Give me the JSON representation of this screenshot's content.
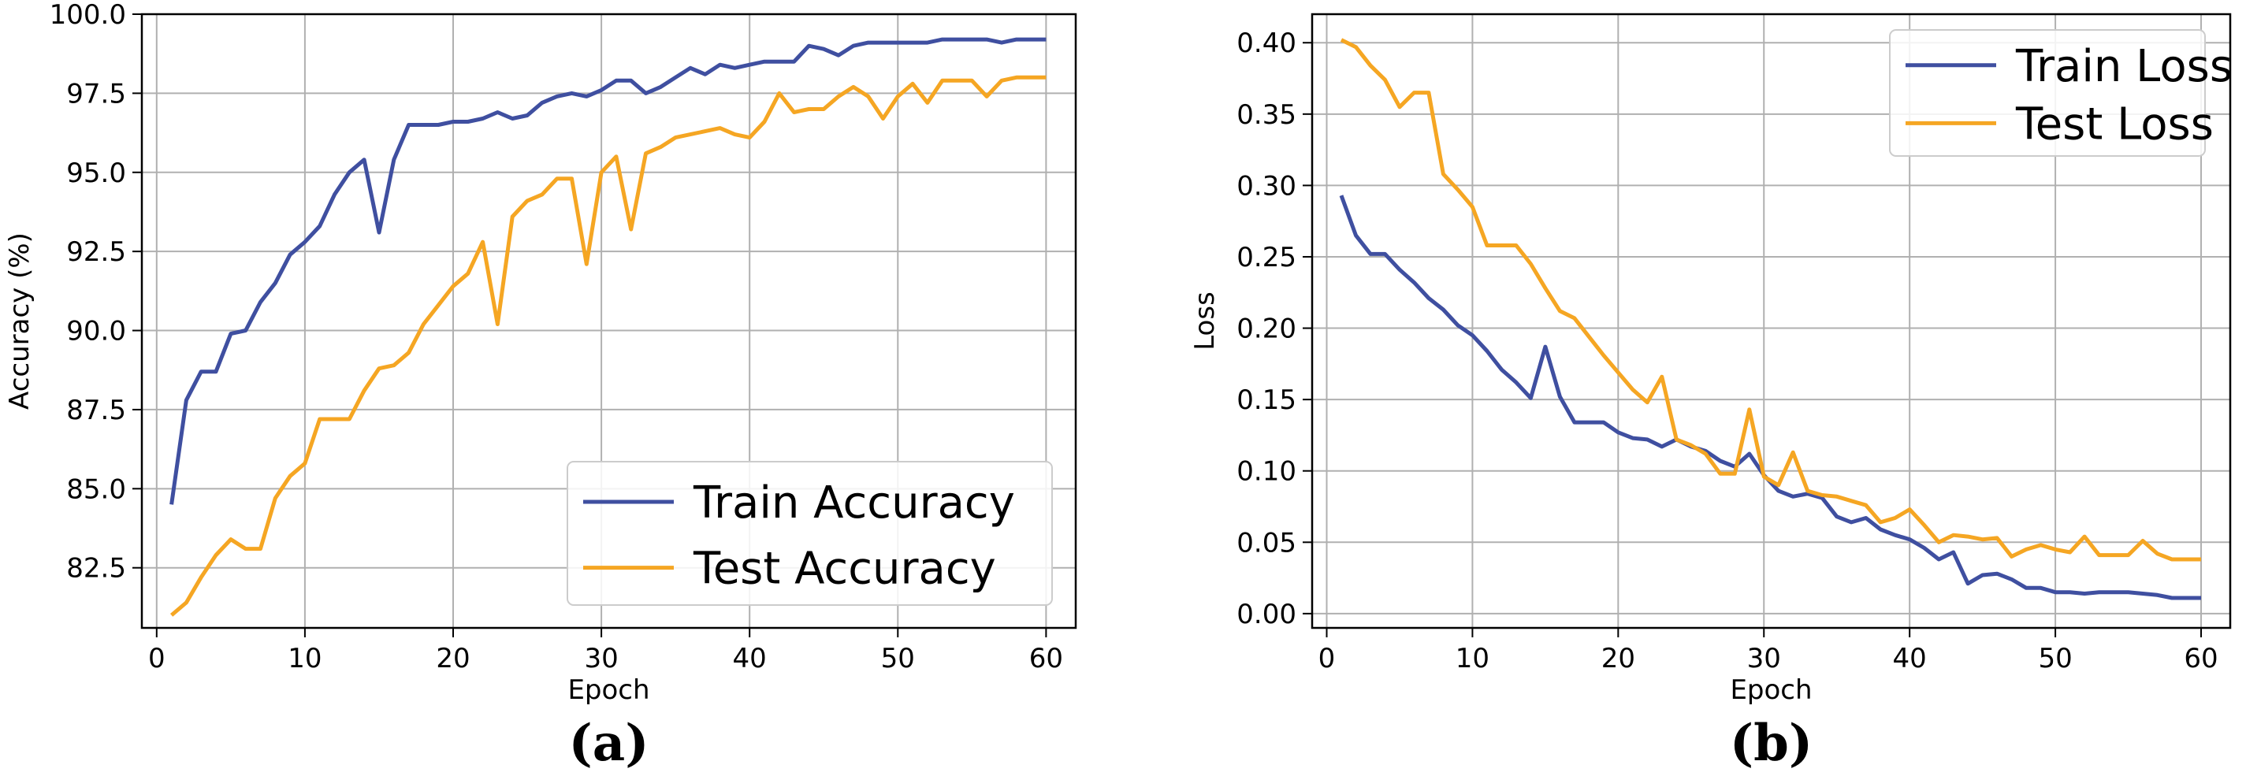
{
  "chart_data": [
    {
      "type": "line",
      "panel_label": "(a)",
      "xlabel": "Epoch",
      "ylabel": "Accuracy (%)",
      "xlim": [
        -1,
        62
      ],
      "ylim": [
        80.6,
        100.0
      ],
      "x_ticks": [
        0,
        10,
        20,
        30,
        40,
        50,
        60
      ],
      "y_ticks": [
        82.5,
        85.0,
        87.5,
        90.0,
        92.5,
        95.0,
        97.5,
        100.0
      ],
      "y_tick_labels": [
        "82.5",
        "85.0",
        "87.5",
        "90.0",
        "92.5",
        "95.0",
        "97.5",
        "100.0"
      ],
      "grid": true,
      "legend_position": "bottom-right",
      "x": [
        1,
        2,
        3,
        4,
        5,
        6,
        7,
        8,
        9,
        10,
        11,
        12,
        13,
        14,
        15,
        16,
        17,
        18,
        19,
        20,
        21,
        22,
        23,
        24,
        25,
        26,
        27,
        28,
        29,
        30,
        31,
        32,
        33,
        34,
        35,
        36,
        37,
        38,
        39,
        40,
        41,
        42,
        43,
        44,
        45,
        46,
        47,
        48,
        49,
        50,
        51,
        52,
        53,
        54,
        55,
        56,
        57,
        58,
        59,
        60
      ],
      "series": [
        {
          "name": "Train Accuracy",
          "color": "#3f4fa0",
          "values": [
            84.5,
            87.8,
            88.7,
            88.7,
            89.9,
            90.0,
            90.9,
            91.5,
            92.4,
            92.8,
            93.3,
            94.3,
            95.0,
            95.4,
            93.1,
            95.4,
            96.5,
            96.5,
            96.5,
            96.6,
            96.6,
            96.7,
            96.9,
            96.7,
            96.8,
            97.2,
            97.4,
            97.5,
            97.4,
            97.6,
            97.9,
            97.9,
            97.5,
            97.7,
            98.0,
            98.3,
            98.1,
            98.4,
            98.3,
            98.4,
            98.5,
            98.5,
            98.5,
            99.0,
            98.9,
            98.7,
            99.0,
            99.1,
            99.1,
            99.1,
            99.1,
            99.1,
            99.2,
            99.2,
            99.2,
            99.2,
            99.1,
            99.2,
            99.2,
            99.2
          ]
        },
        {
          "name": "Test Accuracy",
          "color": "#f5a623",
          "values": [
            81.0,
            81.4,
            82.2,
            82.9,
            83.4,
            83.1,
            83.1,
            84.7,
            85.4,
            85.8,
            87.2,
            87.2,
            87.2,
            88.1,
            88.8,
            88.9,
            89.3,
            90.2,
            90.8,
            91.4,
            91.8,
            92.8,
            90.2,
            93.6,
            94.1,
            94.3,
            94.8,
            94.8,
            92.1,
            95.0,
            95.5,
            93.2,
            95.6,
            95.8,
            96.1,
            96.2,
            96.3,
            96.4,
            96.2,
            96.1,
            96.6,
            97.5,
            96.9,
            97.0,
            97.0,
            97.4,
            97.7,
            97.4,
            96.7,
            97.4,
            97.8,
            97.2,
            97.9,
            97.9,
            97.9,
            97.4,
            97.9,
            98.0,
            98.0,
            98.0
          ]
        }
      ]
    },
    {
      "type": "line",
      "panel_label": "(b)",
      "xlabel": "Epoch",
      "ylabel": "Loss",
      "xlim": [
        -1,
        62
      ],
      "ylim": [
        -0.01,
        0.42
      ],
      "x_ticks": [
        0,
        10,
        20,
        30,
        40,
        50,
        60
      ],
      "y_ticks": [
        0.0,
        0.05,
        0.1,
        0.15,
        0.2,
        0.25,
        0.3,
        0.35,
        0.4
      ],
      "y_tick_labels": [
        "0.00",
        "0.05",
        "0.10",
        "0.15",
        "0.20",
        "0.25",
        "0.30",
        "0.35",
        "0.40"
      ],
      "grid": true,
      "legend_position": "top-right",
      "x": [
        1,
        2,
        3,
        4,
        5,
        6,
        7,
        8,
        9,
        10,
        11,
        12,
        13,
        14,
        15,
        16,
        17,
        18,
        19,
        20,
        21,
        22,
        23,
        24,
        25,
        26,
        27,
        28,
        29,
        30,
        31,
        32,
        33,
        34,
        35,
        36,
        37,
        38,
        39,
        40,
        41,
        42,
        43,
        44,
        45,
        46,
        47,
        48,
        49,
        50,
        51,
        52,
        53,
        54,
        55,
        56,
        57,
        58,
        59,
        60
      ],
      "series": [
        {
          "name": "Train Loss",
          "color": "#3f4fa0",
          "values": [
            0.293,
            0.265,
            0.252,
            0.252,
            0.241,
            0.232,
            0.221,
            0.213,
            0.202,
            0.195,
            0.184,
            0.171,
            0.162,
            0.151,
            0.187,
            0.152,
            0.134,
            0.134,
            0.134,
            0.127,
            0.123,
            0.122,
            0.117,
            0.122,
            0.117,
            0.114,
            0.107,
            0.103,
            0.112,
            0.097,
            0.086,
            0.082,
            0.084,
            0.081,
            0.068,
            0.064,
            0.067,
            0.059,
            0.055,
            0.052,
            0.046,
            0.038,
            0.043,
            0.021,
            0.027,
            0.028,
            0.024,
            0.018,
            0.018,
            0.015,
            0.015,
            0.014,
            0.015,
            0.015,
            0.015,
            0.014,
            0.013,
            0.011,
            0.011,
            0.011
          ]
        },
        {
          "name": "Test Loss",
          "color": "#f5a623",
          "values": [
            0.402,
            0.397,
            0.384,
            0.374,
            0.355,
            0.365,
            0.365,
            0.308,
            0.297,
            0.285,
            0.258,
            0.258,
            0.258,
            0.245,
            0.228,
            0.212,
            0.207,
            0.194,
            0.181,
            0.169,
            0.157,
            0.148,
            0.166,
            0.122,
            0.118,
            0.112,
            0.098,
            0.098,
            0.143,
            0.096,
            0.09,
            0.113,
            0.086,
            0.083,
            0.082,
            0.079,
            0.076,
            0.064,
            0.067,
            0.073,
            0.062,
            0.05,
            0.055,
            0.054,
            0.052,
            0.053,
            0.04,
            0.045,
            0.048,
            0.045,
            0.043,
            0.054,
            0.041,
            0.041,
            0.041,
            0.051,
            0.042,
            0.038,
            0.038,
            0.038
          ]
        }
      ]
    }
  ]
}
